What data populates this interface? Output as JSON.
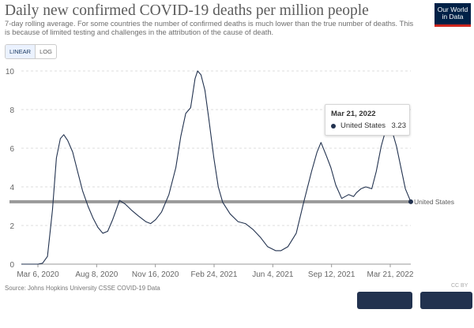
{
  "header": {
    "title": "Daily new confirmed COVID-19 deaths per million people",
    "subtitle": "7-day rolling average. For some countries the number of confirmed deaths is much lower than the true number of deaths. This is because of limited testing and challenges in the attribution of the cause of death.",
    "logo_line1": "Our World",
    "logo_line2": "in Data"
  },
  "controls": {
    "linear_label": "LINEAR",
    "log_label": "LOG",
    "active": "linear"
  },
  "tooltip": {
    "date": "Mar 21, 2022",
    "series": "United States",
    "value": "3.23"
  },
  "footer": {
    "source": "Source: Johns Hopkins University CSSE COVID-19 Data",
    "license": "CC BY"
  },
  "colors": {
    "series": "#22324f",
    "highlight_line": "#9a9a9a",
    "grid": "#dddddd"
  },
  "chart_data": {
    "type": "line",
    "title": "Daily new confirmed COVID-19 deaths per million people",
    "xlabel": "",
    "ylabel": "",
    "ylim": [
      0,
      10
    ],
    "y_ticks": [
      "0",
      "2",
      "4",
      "6",
      "8",
      "10"
    ],
    "x_tick_labels": [
      "Mar 6, 2020",
      "Aug 8, 2020",
      "Nov 16, 2020",
      "Feb 24, 2021",
      "Jun 4, 2021",
      "Sep 12, 2021",
      "Mar 21, 2022"
    ],
    "grid": true,
    "reference_value": 3.23,
    "series": [
      {
        "name": "United States",
        "end_label": "United States",
        "x": [
          "2020-01-22",
          "2020-02-25",
          "2020-03-05",
          "2020-03-15",
          "2020-03-25",
          "2020-04-02",
          "2020-04-10",
          "2020-04-17",
          "2020-04-25",
          "2020-05-05",
          "2020-05-15",
          "2020-05-25",
          "2020-06-05",
          "2020-06-15",
          "2020-06-25",
          "2020-07-05",
          "2020-07-15",
          "2020-07-25",
          "2020-08-01",
          "2020-08-08",
          "2020-08-20",
          "2020-09-01",
          "2020-09-15",
          "2020-09-30",
          "2020-10-10",
          "2020-10-20",
          "2020-11-01",
          "2020-11-16",
          "2020-11-30",
          "2020-12-10",
          "2020-12-20",
          "2020-12-30",
          "2021-01-08",
          "2021-01-13",
          "2021-01-20",
          "2021-01-28",
          "2021-02-05",
          "2021-02-15",
          "2021-02-24",
          "2021-03-05",
          "2021-03-20",
          "2021-04-05",
          "2021-04-20",
          "2021-05-05",
          "2021-05-20",
          "2021-06-04",
          "2021-06-20",
          "2021-07-01",
          "2021-07-15",
          "2021-08-01",
          "2021-08-15",
          "2021-09-01",
          "2021-09-12",
          "2021-09-20",
          "2021-10-01",
          "2021-10-10",
          "2021-10-20",
          "2021-11-01",
          "2021-11-15",
          "2021-11-25",
          "2021-12-01",
          "2021-12-10",
          "2021-12-20",
          "2022-01-01",
          "2022-01-10",
          "2022-01-20",
          "2022-02-01",
          "2022-02-10",
          "2022-02-20",
          "2022-03-01",
          "2022-03-10",
          "2022-03-21"
        ],
        "values": [
          0.0,
          0.0,
          0.05,
          0.4,
          2.8,
          5.5,
          6.5,
          6.7,
          6.4,
          5.8,
          4.8,
          3.8,
          3.0,
          2.4,
          1.9,
          1.6,
          1.7,
          2.3,
          2.8,
          3.3,
          3.1,
          2.8,
          2.5,
          2.2,
          2.1,
          2.3,
          2.7,
          3.6,
          5.0,
          6.6,
          7.8,
          8.1,
          9.6,
          10.0,
          9.8,
          9.0,
          7.5,
          5.5,
          4.0,
          3.2,
          2.6,
          2.2,
          2.1,
          1.8,
          1.4,
          0.9,
          0.7,
          0.7,
          0.9,
          1.6,
          3.1,
          4.8,
          5.8,
          6.3,
          5.6,
          5.0,
          4.1,
          3.4,
          3.6,
          3.5,
          3.7,
          3.9,
          4.0,
          3.9,
          4.8,
          6.1,
          7.2,
          7.0,
          6.1,
          5.0,
          3.9,
          3.23
        ]
      }
    ]
  }
}
